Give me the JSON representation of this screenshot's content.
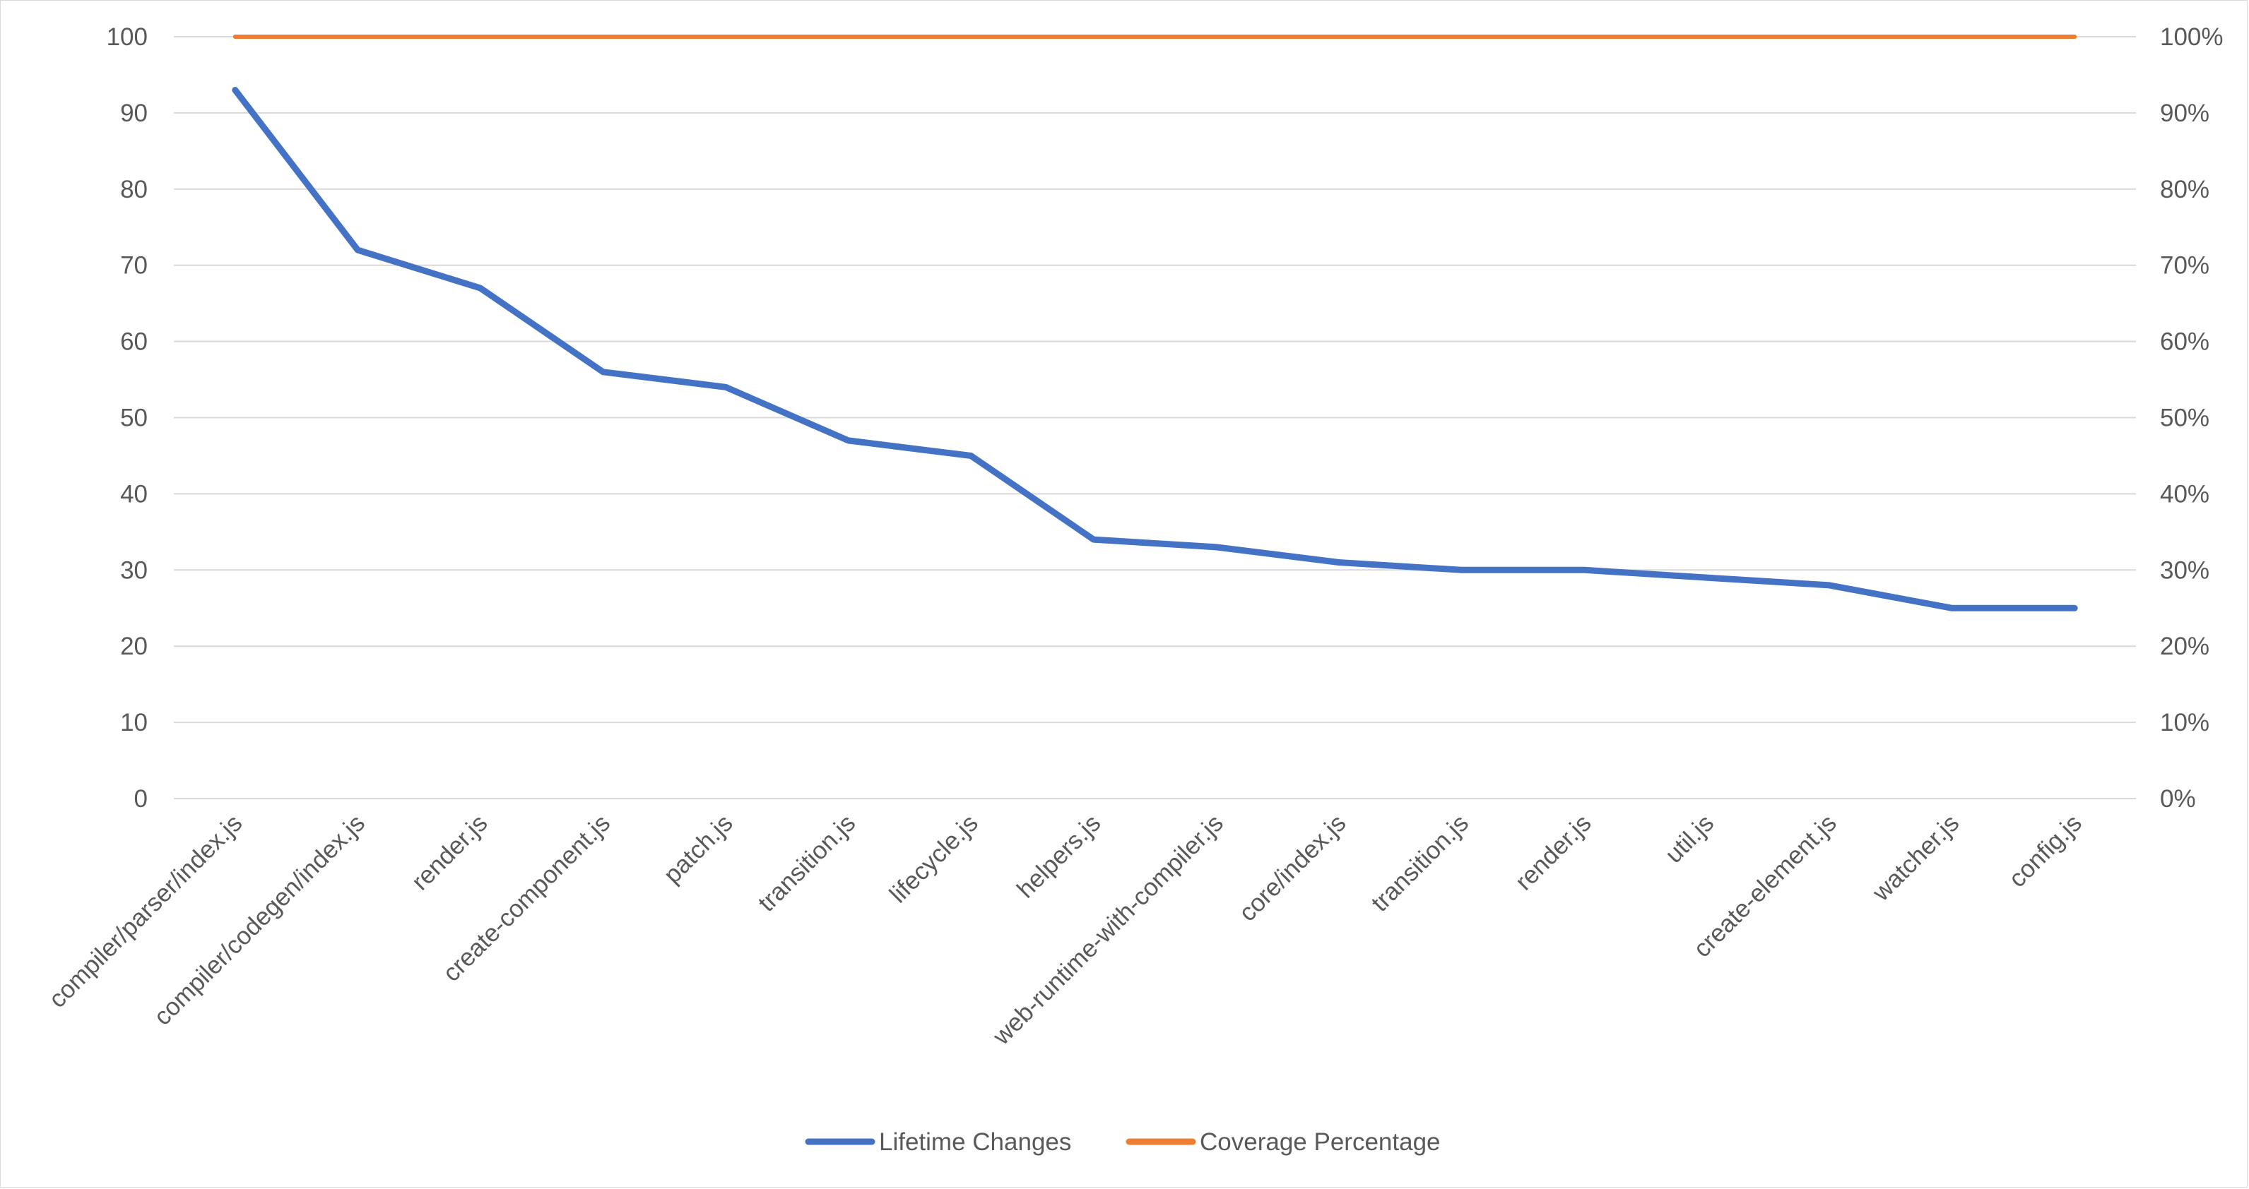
{
  "chart_data": {
    "type": "line",
    "categories": [
      "compiler/parser/index.js",
      "compiler/codegen/index.js",
      "render.js",
      "create-component.js",
      "patch.js",
      "transition.js",
      "lifecycle.js",
      "helpers.js",
      "web-runtime-with-compiler.js",
      "core/index.js",
      "transition.js",
      "render.js",
      "util.js",
      "create-element.js",
      "watcher.js",
      "config.js"
    ],
    "series": [
      {
        "name": "Lifetime Changes",
        "axis": "left",
        "color": "#4472c4",
        "values": [
          93,
          72,
          67,
          56,
          54,
          47,
          45,
          34,
          33,
          31,
          30,
          30,
          29,
          28,
          25,
          25
        ]
      },
      {
        "name": "Coverage Percentage",
        "axis": "right",
        "color": "#ed7d31",
        "values": [
          1,
          1,
          1,
          1,
          1,
          1,
          1,
          1,
          1,
          1,
          1,
          1,
          1,
          1,
          1,
          1
        ]
      }
    ],
    "ylim": [
      0,
      100
    ],
    "y_ticks": [
      "0",
      "10",
      "20",
      "30",
      "40",
      "50",
      "60",
      "70",
      "80",
      "90",
      "100"
    ],
    "y2lim": [
      0,
      1
    ],
    "y2_ticks": [
      "0%",
      "10%",
      "20%",
      "30%",
      "40%",
      "50%",
      "60%",
      "70%",
      "80%",
      "90%",
      "100%"
    ],
    "grid": true,
    "legend_position": "bottom"
  }
}
